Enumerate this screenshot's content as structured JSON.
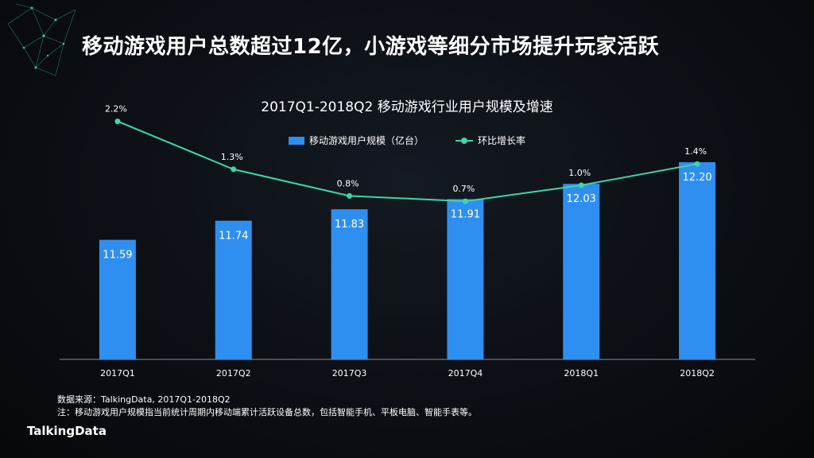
{
  "slide": {
    "title": "移动游戏用户总数超过12亿，小游戏等细分市场提升玩家活跃"
  },
  "chart_data": {
    "type": "bar",
    "title": "2017Q1-2018Q2  移动游戏行业用户规模及增速",
    "categories": [
      "2017Q1",
      "2017Q2",
      "2017Q3",
      "2017Q4",
      "2018Q1",
      "2018Q2"
    ],
    "series": [
      {
        "name": "移动游戏用户规模（亿台）",
        "type": "bar",
        "values": [
          11.59,
          11.74,
          11.83,
          11.91,
          12.03,
          12.2
        ],
        "labels": [
          "11.59",
          "11.74",
          "11.83",
          "11.91",
          "12.03",
          "12.20"
        ],
        "color": "#2f8ff0"
      },
      {
        "name": "环比增长率",
        "type": "line",
        "values": [
          2.2,
          1.3,
          0.8,
          0.7,
          1.0,
          1.4
        ],
        "labels": [
          "2.2%",
          "1.3%",
          "0.8%",
          "0.7%",
          "1.0%",
          "1.4%"
        ],
        "color": "#3ed6a8"
      }
    ],
    "grid": false,
    "legend_position": "top"
  },
  "footnote": {
    "source": "数据来源：TalkingData, 2017Q1-2018Q2",
    "note": "注：移动游戏用户规模指当前统计周期内移动端累计活跃设备总数，包括智能手机、平板电脑、智能手表等。"
  },
  "brand": {
    "logo_text": "TalkingData"
  }
}
